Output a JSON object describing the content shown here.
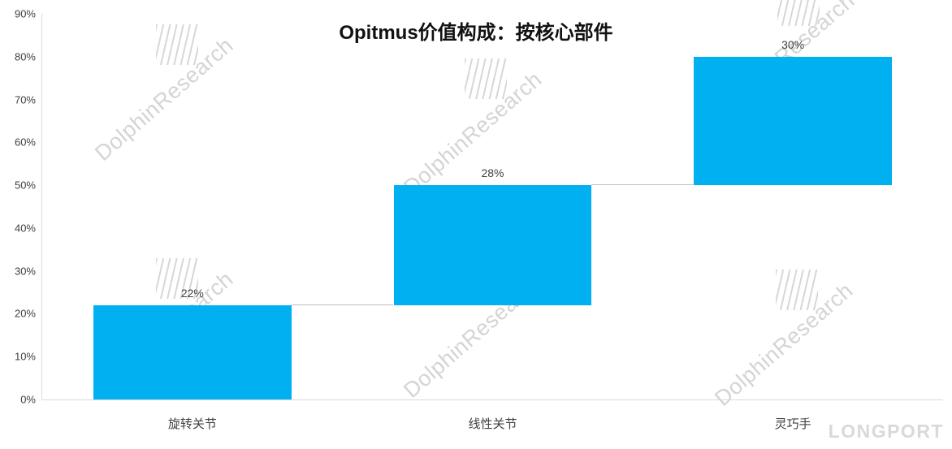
{
  "chart_data": {
    "type": "bar",
    "subtype": "waterfall",
    "title": "Opitmus价值构成：按核心部件",
    "categories": [
      "旋转关节",
      "线性关节",
      "灵巧手"
    ],
    "values": [
      22,
      28,
      30
    ],
    "starts": [
      0,
      22,
      50
    ],
    "labels": [
      "22%",
      "28%",
      "30%"
    ],
    "ylim": [
      0,
      90
    ],
    "ytick_step": 10,
    "yticks": [
      "0%",
      "10%",
      "20%",
      "30%",
      "40%",
      "50%",
      "60%",
      "70%",
      "80%",
      "90%"
    ],
    "xlabel": "",
    "ylabel": "",
    "grid": false,
    "legend": false,
    "colors": {
      "bar": "#00B0F0",
      "axis": "#D9D9D9",
      "text": "#404040",
      "connector": "#BFBFBF",
      "watermark": "#D4D4D4"
    }
  },
  "watermark": {
    "text": "DolphinResearch",
    "brand": "LONGPORT"
  }
}
